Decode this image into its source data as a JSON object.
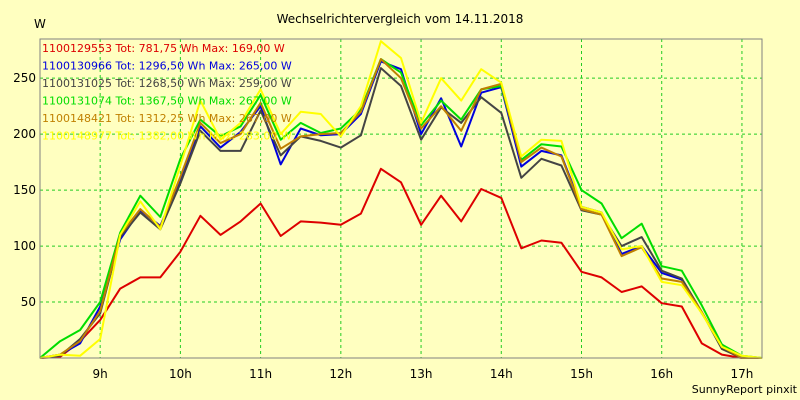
{
  "chart_data": {
    "type": "line",
    "title": "Wechselrichtervergleich vom 14.11.2018",
    "ylabel": "W",
    "xlabel": "",
    "footer": "SunnyReport pinxit",
    "ylim": [
      0,
      285
    ],
    "xlim": [
      8.25,
      17.25
    ],
    "grid": true,
    "legend_position": "top-left",
    "x_ticks": [
      {
        "value": 9,
        "label": "9h"
      },
      {
        "value": 10,
        "label": "10h"
      },
      {
        "value": 11,
        "label": "11h"
      },
      {
        "value": 12,
        "label": "12h"
      },
      {
        "value": 13,
        "label": "13h"
      },
      {
        "value": 14,
        "label": "14h"
      },
      {
        "value": 15,
        "label": "15h"
      },
      {
        "value": 16,
        "label": "16h"
      },
      {
        "value": 17,
        "label": "17h"
      }
    ],
    "y_ticks": [
      {
        "value": 50,
        "label": "50"
      },
      {
        "value": 100,
        "label": "100"
      },
      {
        "value": 150,
        "label": "150"
      },
      {
        "value": 200,
        "label": "200"
      },
      {
        "value": 250,
        "label": "250"
      }
    ],
    "x": [
      8.25,
      8.5,
      8.75,
      9.0,
      9.25,
      9.5,
      9.75,
      10.0,
      10.25,
      10.5,
      10.75,
      11.0,
      11.25,
      11.5,
      11.75,
      12.0,
      12.25,
      12.5,
      12.75,
      13.0,
      13.25,
      13.5,
      13.75,
      14.0,
      14.25,
      14.5,
      14.75,
      15.0,
      15.25,
      15.5,
      15.75,
      16.0,
      16.25,
      16.5,
      16.75,
      17.0,
      17.25
    ],
    "series": [
      {
        "name": "1100129553",
        "legend": "1100129553 Tot: 781,75 Wh Max: 169,00 W",
        "color": "#dd0000",
        "values": [
          0,
          1,
          15,
          34,
          62,
          72,
          72,
          95,
          127,
          110,
          122,
          138,
          109,
          122,
          121,
          119,
          129,
          169,
          157,
          119,
          145,
          122,
          151,
          143,
          98,
          105,
          103,
          77,
          72,
          59,
          64,
          49,
          46,
          13,
          3,
          0,
          0
        ]
      },
      {
        "name": "1100130966",
        "legend": "1100130966 Tot: 1296,50 Wh Max: 265,00 W",
        "color": "#0000dd",
        "values": [
          0,
          3,
          13,
          46,
          106,
          132,
          118,
          160,
          207,
          188,
          202,
          225,
          173,
          205,
          199,
          200,
          218,
          265,
          258,
          200,
          232,
          189,
          237,
          242,
          171,
          185,
          181,
          135,
          130,
          93,
          100,
          76,
          70,
          40,
          12,
          0,
          0
        ]
      },
      {
        "name": "1100131025",
        "legend": "1100131025 Tot: 1268,50 Wh Max: 259,00 W",
        "color": "#444444",
        "values": [
          0,
          2,
          17,
          40,
          108,
          130,
          115,
          156,
          203,
          185,
          185,
          221,
          181,
          198,
          194,
          188,
          199,
          259,
          243,
          195,
          224,
          210,
          233,
          219,
          161,
          178,
          172,
          132,
          128,
          100,
          108,
          78,
          71,
          41,
          8,
          0,
          0
        ]
      },
      {
        "name": "1100131074",
        "legend": "1100131074 Tot: 1367,50 Wh Max: 267,00 W",
        "color": "#00dd00",
        "values": [
          0,
          15,
          25,
          50,
          112,
          145,
          126,
          178,
          213,
          198,
          207,
          235,
          195,
          210,
          201,
          205,
          222,
          267,
          255,
          208,
          230,
          213,
          240,
          243,
          177,
          191,
          189,
          150,
          138,
          107,
          120,
          82,
          78,
          47,
          12,
          2,
          0
        ]
      },
      {
        "name": "1100148421",
        "legend": "1100148421 Tot: 1312,25 Wh Max: 267,00 W",
        "color": "#c08000",
        "values": [
          0,
          3,
          15,
          42,
          110,
          133,
          117,
          162,
          210,
          192,
          200,
          228,
          187,
          198,
          200,
          201,
          220,
          267,
          250,
          205,
          225,
          203,
          240,
          245,
          175,
          188,
          180,
          133,
          128,
          91,
          99,
          71,
          68,
          41,
          10,
          0,
          0
        ]
      },
      {
        "name": "1100148977",
        "legend": "1100148977 Tot: 1382,00 Wh Max: 283,00 W",
        "color": "#ffff00",
        "values": [
          0,
          3,
          2,
          17,
          110,
          140,
          115,
          172,
          230,
          195,
          210,
          240,
          200,
          220,
          218,
          198,
          225,
          283,
          268,
          210,
          250,
          230,
          258,
          246,
          180,
          195,
          194,
          135,
          130,
          97,
          100,
          68,
          65,
          40,
          10,
          2,
          0
        ]
      }
    ]
  },
  "colors": {
    "background": "#ffffc0",
    "grid": "#22cc22",
    "frame": "#808080"
  }
}
